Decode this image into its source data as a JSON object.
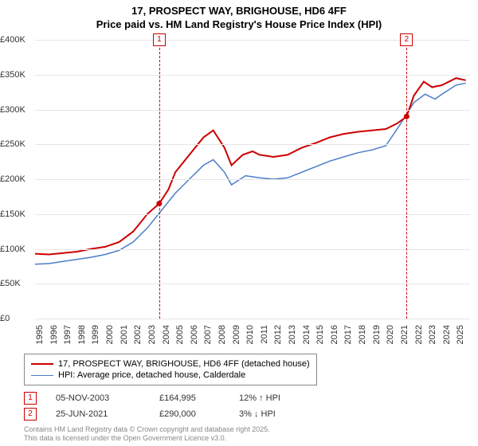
{
  "title_line1": "17, PROSPECT WAY, BRIGHOUSE, HD6 4FF",
  "title_line2": "Price paid vs. HM Land Registry's House Price Index (HPI)",
  "chart": {
    "type": "line",
    "background_color": "#ffffff",
    "grid_color": "#e6e6e6",
    "axis_color": "#999999",
    "label_fontsize": 11,
    "ylim": [
      0,
      400000
    ],
    "ytick_step": 50000,
    "y_ticks": [
      "£0",
      "£50K",
      "£100K",
      "£150K",
      "£200K",
      "£250K",
      "£300K",
      "£350K",
      "£400K"
    ],
    "xlim": [
      1995,
      2026
    ],
    "x_ticks": [
      1995,
      1996,
      1997,
      1998,
      1999,
      2000,
      2001,
      2002,
      2003,
      2004,
      2005,
      2006,
      2007,
      2008,
      2009,
      2010,
      2011,
      2012,
      2013,
      2014,
      2015,
      2016,
      2017,
      2018,
      2019,
      2020,
      2021,
      2022,
      2023,
      2024,
      2025
    ],
    "series": [
      {
        "name": "17, PROSPECT WAY, BRIGHOUSE, HD6 4FF (detached house)",
        "color": "#cc0000",
        "line_width": 2,
        "points": [
          [
            1995,
            93000
          ],
          [
            1996,
            92000
          ],
          [
            1997,
            94000
          ],
          [
            1998,
            96000
          ],
          [
            1999,
            100000
          ],
          [
            2000,
            103000
          ],
          [
            2001,
            110000
          ],
          [
            2002,
            125000
          ],
          [
            2003,
            150000
          ],
          [
            2003.85,
            164995
          ],
          [
            2004.5,
            185000
          ],
          [
            2005,
            210000
          ],
          [
            2006,
            235000
          ],
          [
            2007,
            260000
          ],
          [
            2007.7,
            270000
          ],
          [
            2008.5,
            245000
          ],
          [
            2009,
            220000
          ],
          [
            2009.8,
            235000
          ],
          [
            2010.5,
            240000
          ],
          [
            2011,
            235000
          ],
          [
            2012,
            232000
          ],
          [
            2013,
            235000
          ],
          [
            2014,
            245000
          ],
          [
            2015,
            252000
          ],
          [
            2016,
            260000
          ],
          [
            2017,
            265000
          ],
          [
            2018,
            268000
          ],
          [
            2019,
            270000
          ],
          [
            2020,
            272000
          ],
          [
            2020.8,
            280000
          ],
          [
            2021.48,
            290000
          ],
          [
            2022,
            320000
          ],
          [
            2022.7,
            340000
          ],
          [
            2023.3,
            332000
          ],
          [
            2024,
            335000
          ],
          [
            2025,
            345000
          ],
          [
            2025.7,
            342000
          ]
        ]
      },
      {
        "name": "HPI: Average price, detached house, Calderdale",
        "color": "#4a7ec8",
        "line_width": 1.5,
        "points": [
          [
            1995,
            78000
          ],
          [
            1996,
            79000
          ],
          [
            1997,
            82000
          ],
          [
            1998,
            85000
          ],
          [
            1999,
            88000
          ],
          [
            2000,
            92000
          ],
          [
            2001,
            98000
          ],
          [
            2002,
            110000
          ],
          [
            2003,
            130000
          ],
          [
            2004,
            155000
          ],
          [
            2005,
            180000
          ],
          [
            2006,
            200000
          ],
          [
            2007,
            220000
          ],
          [
            2007.7,
            228000
          ],
          [
            2008.5,
            210000
          ],
          [
            2009,
            192000
          ],
          [
            2010,
            205000
          ],
          [
            2011,
            202000
          ],
          [
            2012,
            200000
          ],
          [
            2013,
            202000
          ],
          [
            2014,
            210000
          ],
          [
            2015,
            218000
          ],
          [
            2016,
            226000
          ],
          [
            2017,
            232000
          ],
          [
            2018,
            238000
          ],
          [
            2019,
            242000
          ],
          [
            2020,
            248000
          ],
          [
            2021,
            278000
          ],
          [
            2022,
            310000
          ],
          [
            2022.8,
            322000
          ],
          [
            2023.5,
            315000
          ],
          [
            2024,
            322000
          ],
          [
            2025,
            335000
          ],
          [
            2025.7,
            338000
          ]
        ]
      }
    ],
    "events": [
      {
        "id": "1",
        "color": "#cc0000",
        "x": 2003.85,
        "date": "05-NOV-2003",
        "price": "£164,995",
        "delta": "12% ↑ HPI"
      },
      {
        "id": "2",
        "color": "#cc0000",
        "x": 2021.48,
        "date": "25-JUN-2021",
        "price": "£290,000",
        "delta": "3% ↓ HPI"
      }
    ]
  },
  "legend": {
    "border_color": "#888888",
    "items": [
      {
        "color": "#cc0000",
        "width": 2,
        "label": "17, PROSPECT WAY, BRIGHOUSE, HD6 4FF (detached house)"
      },
      {
        "color": "#4a7ec8",
        "width": 1.5,
        "label": "HPI: Average price, detached house, Calderdale"
      }
    ]
  },
  "footer": {
    "line1": "Contains HM Land Registry data © Crown copyright and database right 2025.",
    "line2": "This data is licensed under the Open Government Licence v3.0."
  }
}
